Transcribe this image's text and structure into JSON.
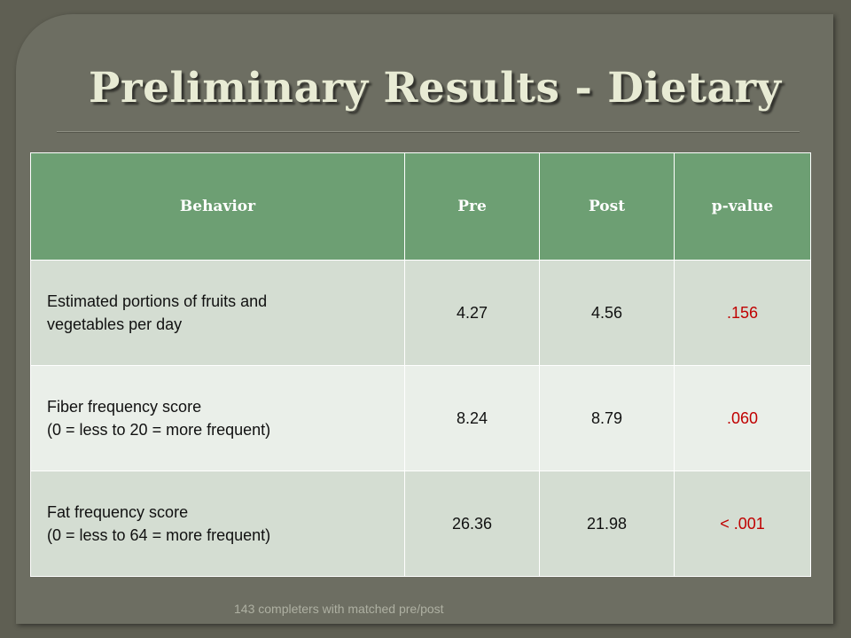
{
  "slide": {
    "title": "Preliminary Results - Dietary",
    "footer": "143 completers with matched pre/post"
  },
  "table": {
    "headers": [
      "Behavior",
      "Pre",
      "Post",
      "p-value"
    ],
    "rows": [
      {
        "behavior_line1": "Estimated portions of fruits and",
        "behavior_line2": "vegetables per day",
        "pre": "4.27",
        "post": "4.56",
        "p_value": ".156"
      },
      {
        "behavior_line1": "Fiber frequency score",
        "behavior_line2": "(0 = less to 20 = more frequent)",
        "pre": "8.24",
        "post": "8.79",
        "p_value": ".060"
      },
      {
        "behavior_line1": "Fat frequency score",
        "behavior_line2": "(0 = less to 64 = more frequent)",
        "pre": "26.36",
        "post": "21.98",
        "p_value": "< .001"
      }
    ]
  },
  "colors": {
    "header_bg": "#6d9f73",
    "p_value_text": "#c00000",
    "title_text": "#e8ebd4"
  }
}
